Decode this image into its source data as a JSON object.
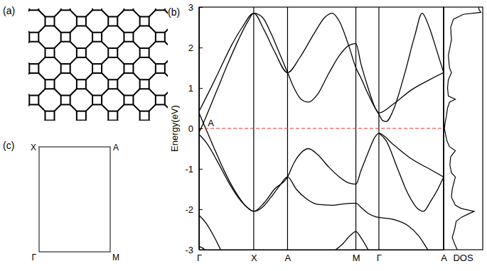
{
  "chart_data": [
    {
      "type": "line",
      "panel": "(b)",
      "ylabel": "Energy(eV)",
      "xlim": [
        0,
        340
      ],
      "xticks": [
        {
          "value": 0,
          "label": "Γ"
        },
        {
          "value": 76,
          "label": "X"
        },
        {
          "value": 123,
          "label": "A"
        },
        {
          "value": 218,
          "label": "M"
        },
        {
          "value": 250,
          "label": "Γ"
        },
        {
          "value": 340,
          "label": "A"
        }
      ],
      "ylim": [
        -3,
        3
      ],
      "yticks": [
        -3,
        -2,
        -1,
        0,
        1,
        2,
        3
      ],
      "grid": "x",
      "color": "#000000",
      "series": [
        {
          "x": [
            0,
            15,
            30,
            45,
            60,
            76,
            90,
            105,
            123,
            140,
            160,
            175,
            185,
            195,
            208,
            218,
            225,
            235,
            245,
            250,
            270,
            295,
            320,
            340
          ],
          "values": [
            0.42,
            0.95,
            1.5,
            2.05,
            2.5,
            2.85,
            2.45,
            1.9,
            1.38,
            1.75,
            2.35,
            2.75,
            2.85,
            2.65,
            2.05,
            1.5,
            1.25,
            0.85,
            0.5,
            0.38,
            0.6,
            0.95,
            1.2,
            1.38
          ]
        },
        {
          "x": [
            0,
            10,
            25,
            40,
            55,
            68,
            76,
            88,
            100,
            112,
            123,
            132,
            142,
            152,
            165,
            180,
            195,
            208,
            218,
            225,
            235,
            245,
            250,
            255,
            260,
            270,
            285,
            300,
            310,
            320,
            330,
            340
          ],
          "values": [
            -0.1,
            0.3,
            0.95,
            1.6,
            2.2,
            2.65,
            2.85,
            2.75,
            2.35,
            1.85,
            1.38,
            1.0,
            0.72,
            0.65,
            0.85,
            1.35,
            1.8,
            2.05,
            2.1,
            1.6,
            1.0,
            0.5,
            0.35,
            0.2,
            0.17,
            0.45,
            1.3,
            2.3,
            2.85,
            2.5,
            1.95,
            1.38
          ]
        },
        {
          "x": [
            0,
            8,
            20,
            35,
            50,
            65,
            76,
            90,
            105,
            123,
            132,
            142,
            152,
            165,
            180,
            195,
            208,
            218,
            225,
            235,
            245,
            250,
            270,
            295,
            320,
            340
          ],
          "values": [
            0.38,
            0.05,
            -0.45,
            -1.05,
            -1.55,
            -1.92,
            -2.05,
            -1.85,
            -1.5,
            -1.2,
            -0.85,
            -0.6,
            -0.5,
            -0.65,
            -0.95,
            -1.2,
            -1.35,
            -1.38,
            -1.05,
            -0.6,
            -0.2,
            -0.12,
            -0.4,
            -0.75,
            -1.0,
            -1.2
          ]
        },
        {
          "x": [
            0,
            10,
            25,
            40,
            55,
            68,
            76,
            88,
            100,
            112,
            123,
            135,
            150,
            165,
            185,
            200,
            218,
            225,
            235,
            245,
            250,
            270,
            290,
            305,
            318
          ],
          "values": [
            -0.15,
            -0.35,
            -0.8,
            -1.3,
            -1.72,
            -1.97,
            -2.05,
            -1.95,
            -1.7,
            -1.42,
            -1.2,
            -1.5,
            -1.75,
            -1.88,
            -1.9,
            -1.87,
            -1.85,
            -1.95,
            -2.1,
            -2.18,
            -2.2,
            -2.25,
            -2.4,
            -2.65,
            -3.0
          ]
        },
        {
          "x": [
            250,
            260,
            275,
            290,
            305,
            312,
            322,
            332,
            340
          ],
          "values": [
            -0.12,
            -0.3,
            -0.95,
            -1.6,
            -2.0,
            -2.05,
            -1.8,
            -1.5,
            -1.2
          ]
        },
        {
          "x": [
            0,
            10,
            20,
            30
          ],
          "values": [
            -2.15,
            -2.35,
            -2.65,
            -3.0
          ]
        },
        {
          "x": [
            0,
            4,
            8
          ],
          "values": [
            -2.92,
            -2.95,
            -3.0
          ]
        },
        {
          "x": [
            190,
            200,
            210,
            218,
            225,
            235
          ],
          "values": [
            -3.0,
            -2.85,
            -2.65,
            -2.55,
            -2.7,
            -3.0
          ]
        }
      ],
      "reference_line": {
        "value": 0,
        "color": "#e8302a",
        "line_style": "dashed"
      },
      "annotations": [
        {
          "text": "A",
          "x": 12,
          "y": 0.06
        }
      ]
    },
    {
      "type": "line",
      "xlabel": "DOS",
      "tick_labels": false,
      "xlim": [
        0,
        1
      ],
      "ylim": [
        -3,
        3
      ],
      "color": "#000000",
      "series": [
        {
          "x": [
            0.35,
            0.3,
            0.22,
            0.28,
            0.32,
            0.45,
            0.62,
            0.78,
            0.45,
            0.3,
            0.2,
            0.22,
            0.26,
            0.3,
            0.2,
            0.16,
            0.18,
            0.3,
            0.15,
            0.08,
            0.05,
            0.02,
            0.04,
            0.07,
            0.1,
            0.15,
            0.3,
            0.12,
            0.1,
            0.12,
            0.2,
            0.15,
            0.12,
            0.16,
            0.2,
            0.18,
            0.25,
            0.5,
            0.95,
            0.9,
            0.9
          ],
          "values": [
            -3,
            -2.9,
            -2.7,
            -2.5,
            -2.3,
            -2.2,
            -2.12,
            -2.05,
            -1.98,
            -1.9,
            -1.7,
            -1.5,
            -1.35,
            -1.2,
            -1.1,
            -0.9,
            -0.7,
            -0.55,
            -0.45,
            -0.3,
            -0.15,
            0,
            0.15,
            0.3,
            0.5,
            0.65,
            0.72,
            0.8,
            1.0,
            1.2,
            1.38,
            1.5,
            1.8,
            2.0,
            2.2,
            2.5,
            2.7,
            2.82,
            2.87,
            2.95,
            3
          ]
        }
      ]
    }
  ],
  "diagrams": {
    "lattice": {
      "panel": "(a)"
    },
    "brillouin_zone": {
      "panel": "(c)",
      "corners": {
        "top_left": "X",
        "top_right": "A",
        "bottom_left": "Γ",
        "bottom_right": "M"
      }
    }
  }
}
